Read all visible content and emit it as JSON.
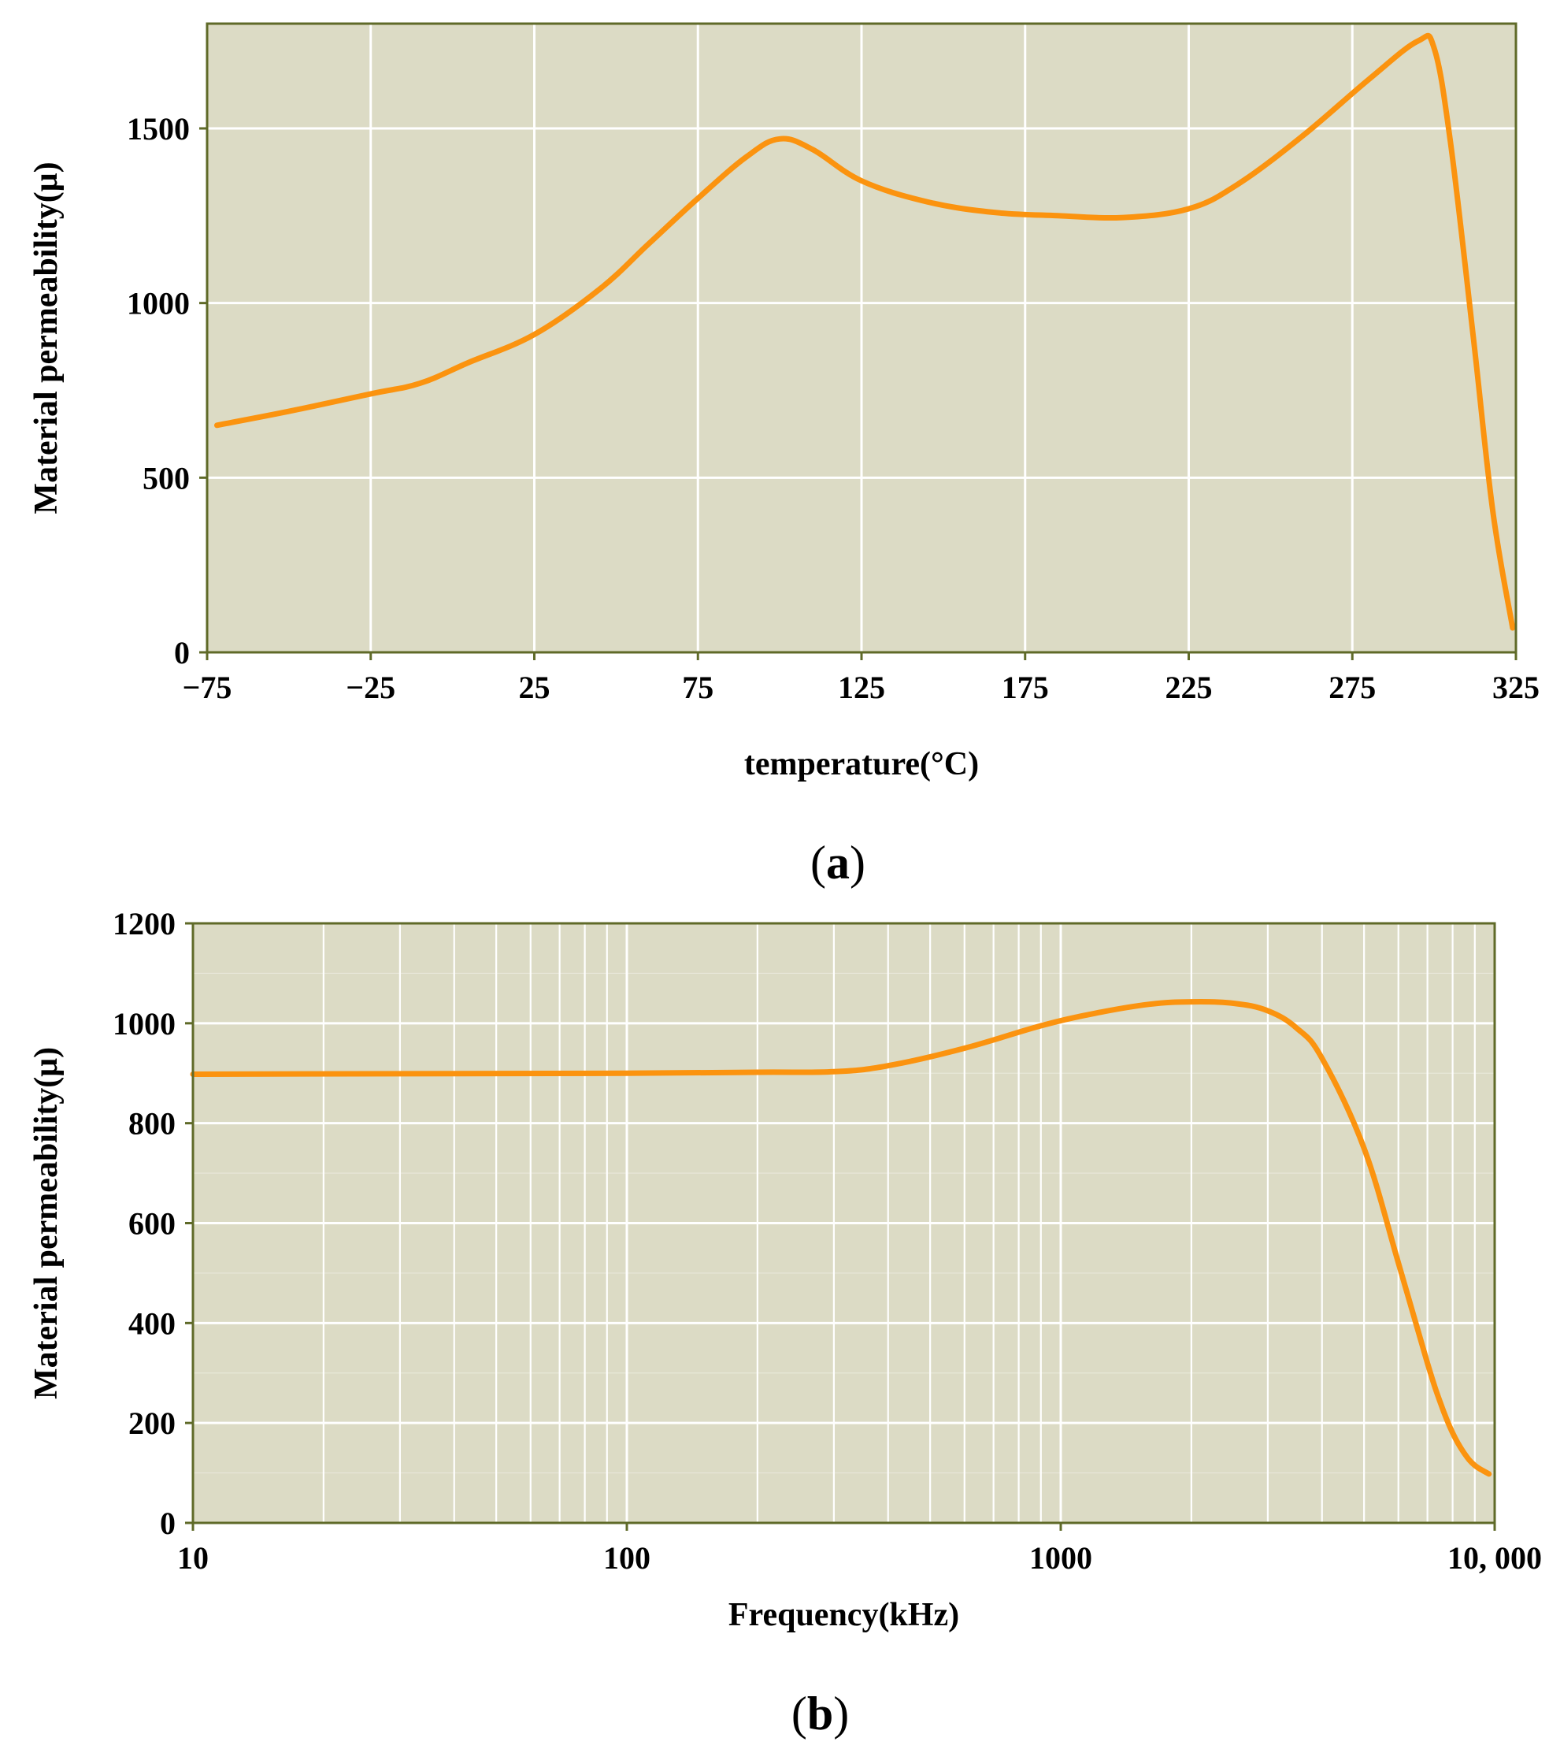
{
  "colors": {
    "plot_bg": "#dcdbc5",
    "frame": "#5f6a28",
    "grid": "#ffffff",
    "curve": "#fb930f",
    "text": "#000000"
  },
  "chart_data": [
    {
      "id": "a",
      "type": "line",
      "panel_label": {
        "open": "(",
        "letter": "a",
        "close": ")"
      },
      "xlabel": "temperature(°C)",
      "ylabel": "Material permeability(μ)",
      "xlim": [
        -75,
        325
      ],
      "ylim": [
        0,
        1800
      ],
      "xticks": [
        -75,
        -25,
        25,
        75,
        125,
        175,
        225,
        275,
        325
      ],
      "xtick_labels": [
        "−75",
        "−25",
        "25",
        "75",
        "125",
        "175",
        "225",
        "275",
        "325"
      ],
      "yticks": [
        0,
        500,
        1000,
        1500
      ],
      "ytick_labels": [
        "0",
        "500",
        "1000",
        "1500"
      ],
      "grid": true,
      "series": [
        {
          "name": "permeability",
          "x": [
            -72,
            -50,
            -25,
            -10,
            5,
            25,
            45,
            60,
            75,
            90,
            100,
            110,
            125,
            145,
            165,
            185,
            205,
            225,
            240,
            260,
            280,
            295,
            300,
            305,
            312,
            318,
            324
          ],
          "y": [
            650,
            690,
            740,
            770,
            830,
            910,
            1040,
            1170,
            1300,
            1420,
            1470,
            1440,
            1350,
            1290,
            1260,
            1250,
            1245,
            1270,
            1340,
            1480,
            1640,
            1750,
            1730,
            1460,
            900,
            400,
            70
          ]
        }
      ]
    },
    {
      "id": "b",
      "type": "line",
      "panel_label": {
        "open": "(",
        "letter": "b",
        "close": ")"
      },
      "xlabel": "Frequency(kHz)",
      "ylabel": "Material permeability(μ)",
      "xscale": "log",
      "xlim": [
        10,
        10000
      ],
      "ylim": [
        0,
        1200
      ],
      "xticks": [
        10,
        100,
        1000,
        10000
      ],
      "xtick_labels": [
        "10",
        "100",
        "1000",
        "10, 000"
      ],
      "yticks": [
        0,
        200,
        400,
        600,
        800,
        1000,
        1200
      ],
      "ytick_labels": [
        "0",
        "200",
        "400",
        "600",
        "800",
        "1000",
        "1200"
      ],
      "grid": true,
      "series": [
        {
          "name": "permeability",
          "x": [
            10,
            30,
            100,
            200,
            300,
            400,
            600,
            900,
            1200,
            1600,
            2000,
            2500,
            3000,
            3500,
            4000,
            5000,
            6000,
            7000,
            7500,
            8000,
            8500,
            9000,
            9700
          ],
          "y": [
            898,
            899,
            900,
            902,
            903,
            915,
            950,
            995,
            1020,
            1038,
            1043,
            1040,
            1025,
            990,
            930,
            750,
            520,
            320,
            240,
            180,
            140,
            115,
            98
          ]
        }
      ]
    }
  ]
}
